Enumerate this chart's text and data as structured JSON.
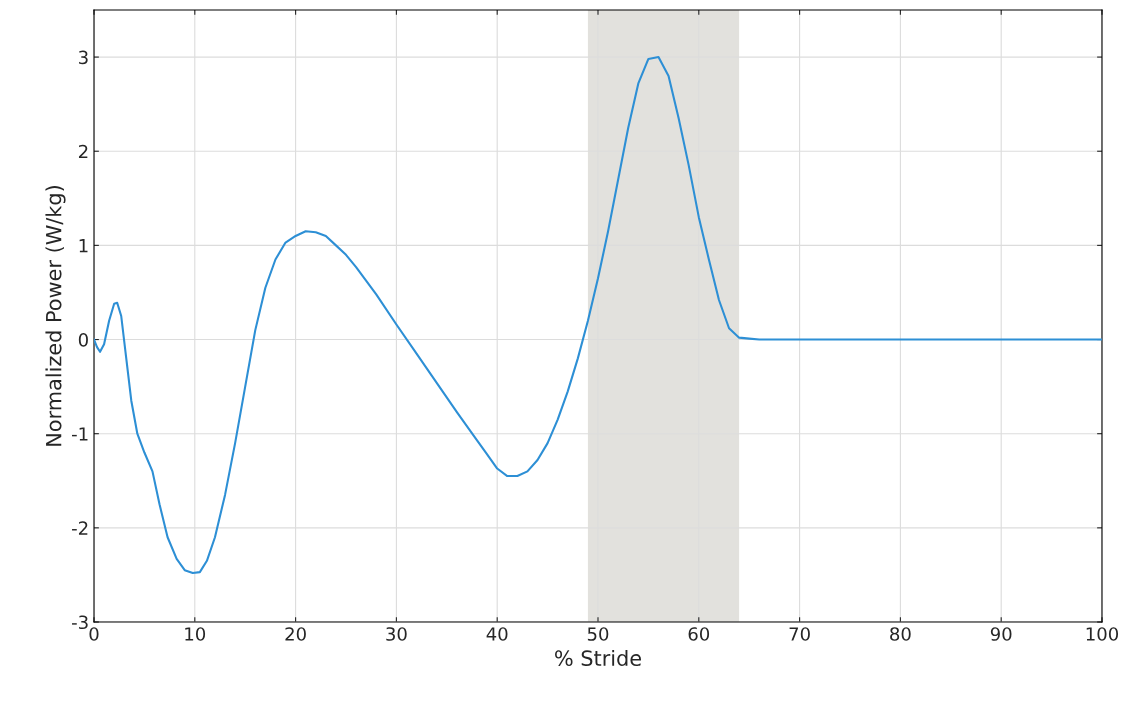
{
  "chart_data": {
    "type": "line",
    "xlabel": "% Stride",
    "ylabel": "Normalized Power (W/kg)",
    "xlim": [
      0,
      100
    ],
    "ylim": [
      -3,
      3.5
    ],
    "xticks": [
      0,
      10,
      20,
      30,
      40,
      50,
      60,
      70,
      80,
      90,
      100
    ],
    "yticks": [
      -3,
      -2,
      -1,
      0,
      1,
      2,
      3
    ],
    "grid": true,
    "bands": [
      {
        "axis": "x",
        "from": 49,
        "to": 64,
        "color": "#e2e1dd"
      }
    ],
    "series": [
      {
        "color": "#2d8fd5",
        "x": [
          0,
          0.3,
          0.6,
          1,
          1.5,
          2,
          2.3,
          2.7,
          3.2,
          3.7,
          4.3,
          5,
          5.8,
          6.5,
          7.3,
          8.2,
          9,
          9.8,
          10.5,
          11.2,
          12,
          13,
          14,
          15,
          16,
          17,
          18,
          19,
          20,
          21,
          22,
          23,
          24,
          25,
          26,
          28,
          30,
          32,
          34,
          36,
          38,
          39,
          40,
          41,
          42,
          43,
          44,
          45,
          46,
          47,
          48,
          49,
          50,
          51,
          52,
          53,
          54,
          55,
          56,
          57,
          58,
          59,
          60,
          61,
          62,
          63,
          64,
          65,
          66,
          70,
          80,
          90,
          100
        ],
        "values": [
          0,
          -0.08,
          -0.13,
          -0.05,
          0.2,
          0.38,
          0.39,
          0.25,
          -0.2,
          -0.65,
          -1.0,
          -1.2,
          -1.4,
          -1.75,
          -2.1,
          -2.33,
          -2.45,
          -2.48,
          -2.47,
          -2.35,
          -2.1,
          -1.65,
          -1.1,
          -0.5,
          0.1,
          0.55,
          0.85,
          1.03,
          1.1,
          1.15,
          1.14,
          1.1,
          1.0,
          0.9,
          0.77,
          0.48,
          0.16,
          -0.15,
          -0.46,
          -0.77,
          -1.07,
          -1.22,
          -1.37,
          -1.45,
          -1.45,
          -1.4,
          -1.28,
          -1.1,
          -0.85,
          -0.55,
          -0.2,
          0.2,
          0.65,
          1.15,
          1.7,
          2.25,
          2.72,
          2.98,
          3.0,
          2.8,
          2.35,
          1.85,
          1.3,
          0.85,
          0.42,
          0.12,
          0.02,
          0.01,
          0,
          0,
          0,
          0,
          0
        ]
      }
    ]
  }
}
